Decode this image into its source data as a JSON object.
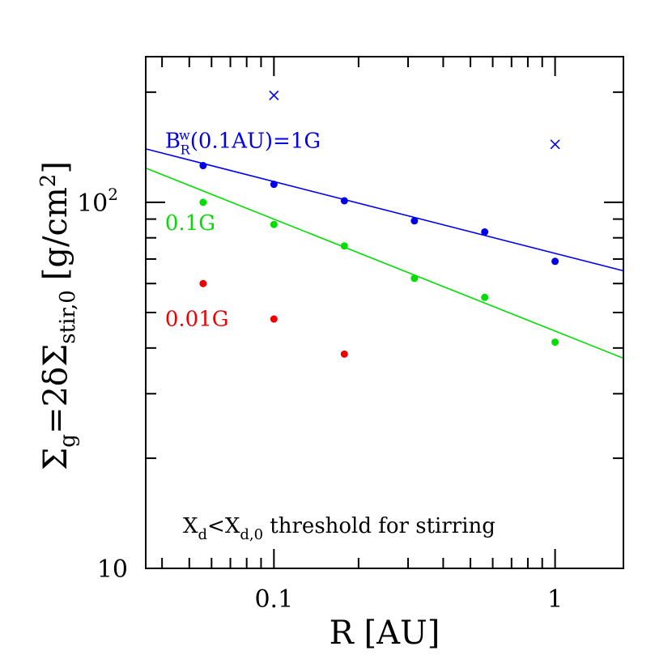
{
  "chart_data": {
    "type": "scatter",
    "xscale": "log",
    "yscale": "log",
    "xlim": [
      0.035,
      1.75
    ],
    "ylim": [
      10,
      250
    ],
    "xlabel": "R [AU]",
    "ylabel": {
      "prefix": "Σ",
      "sub1": "g",
      "mid": "=2δΣ",
      "sub2": "stir,0",
      "unit_open": "[g/cm",
      "unit_sup": "2",
      "unit_close": "]"
    },
    "x_tick_labels": [
      {
        "value": 0.1,
        "label": "0.1"
      },
      {
        "value": 1,
        "label": "1"
      }
    ],
    "y_tick_labels": [
      {
        "value": 10,
        "label": "10"
      },
      {
        "value": 100,
        "label": "10",
        "sup": "2"
      }
    ],
    "y_minor_ticks": [
      20,
      30,
      40,
      50,
      60,
      70,
      80,
      90,
      200
    ],
    "x_minor_ticks": [
      0.04,
      0.05,
      0.06,
      0.07,
      0.08,
      0.09,
      0.2,
      0.3,
      0.4,
      0.5,
      0.6,
      0.7,
      0.8,
      0.9
    ],
    "series": [
      {
        "color": "#0000ee",
        "points": [
          [
            0.056,
            126
          ],
          [
            0.1,
            112
          ],
          [
            0.178,
            101
          ],
          [
            0.316,
            89
          ],
          [
            0.562,
            83
          ],
          [
            1.0,
            69
          ]
        ],
        "fit": [
          [
            0.035,
            140
          ],
          [
            1.75,
            65
          ]
        ],
        "label": {
          "main": "B",
          "sup": "w",
          "sub": "R",
          "rest": "(0.1AU)=1G",
          "x": 0.041,
          "y": 141
        }
      },
      {
        "color": "#00dd00",
        "points": [
          [
            0.056,
            100
          ],
          [
            0.1,
            87
          ],
          [
            0.178,
            76
          ],
          [
            0.316,
            62
          ],
          [
            0.562,
            55
          ],
          [
            1.0,
            41.5
          ]
        ],
        "fit": [
          [
            0.035,
            124
          ],
          [
            1.75,
            37.5
          ]
        ],
        "label": {
          "main": "0.1G",
          "x": 0.041,
          "y": 84
        }
      },
      {
        "color": "#ee0000",
        "points": [
          [
            0.056,
            60
          ],
          [
            0.1,
            48
          ],
          [
            0.178,
            38.5
          ]
        ],
        "label": {
          "main": "0.01G",
          "x": 0.041,
          "y": 46
        }
      }
    ],
    "crosses": {
      "color": "#0000ee",
      "points": [
        [
          0.1,
          196
        ],
        [
          1.0,
          144
        ]
      ]
    },
    "annotation": {
      "main": "X",
      "sub1": "d",
      "mid": "<X",
      "sub2": "d,0",
      "rest": " threshold for stirring"
    }
  }
}
